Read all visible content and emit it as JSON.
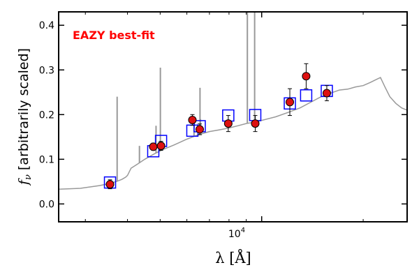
{
  "chart_data": {
    "type": "scatter",
    "title": "",
    "xlabel": "λ [Å]",
    "ylabel": "f",
    "ylabel_sub": "ν",
    "ylabel_rest": " [arbitrarily scaled]",
    "xscale": "log",
    "xlim": [
      2500,
      27000
    ],
    "ylim": [
      -0.04,
      0.43
    ],
    "yticks": [
      0.0,
      0.1,
      0.2,
      0.3,
      0.4
    ],
    "ytick_labels": [
      "0.0",
      "0.1",
      "0.2",
      "0.3",
      "0.4"
    ],
    "xtick_label": {
      "base": "10",
      "exp": "4",
      "value": 10000
    },
    "grid": false,
    "annotation": {
      "text": "EAZY best-fit",
      "color": "#ff0000",
      "position": "top-left"
    },
    "series": [
      {
        "role": "template",
        "color": "#999999",
        "points": [
          [
            2500,
            0.033
          ],
          [
            2700,
            0.034
          ],
          [
            2900,
            0.035
          ],
          [
            3100,
            0.038
          ],
          [
            3300,
            0.041
          ],
          [
            3500,
            0.045
          ],
          [
            3700,
            0.05
          ],
          [
            3850,
            0.055
          ],
          [
            3950,
            0.06
          ],
          [
            4000,
            0.064
          ],
          [
            4100,
            0.08
          ],
          [
            4300,
            0.09
          ],
          [
            4500,
            0.1
          ],
          [
            4800,
            0.112
          ],
          [
            5100,
            0.122
          ],
          [
            5500,
            0.132
          ],
          [
            6000,
            0.145
          ],
          [
            6500,
            0.155
          ],
          [
            7000,
            0.162
          ],
          [
            7500,
            0.166
          ],
          [
            8000,
            0.17
          ],
          [
            8500,
            0.175
          ],
          [
            9000,
            0.18
          ],
          [
            9500,
            0.183
          ],
          [
            10000,
            0.187
          ],
          [
            11000,
            0.195
          ],
          [
            12000,
            0.205
          ],
          [
            13000,
            0.215
          ],
          [
            14000,
            0.228
          ],
          [
            15000,
            0.24
          ],
          [
            16000,
            0.248
          ],
          [
            17000,
            0.255
          ],
          [
            18000,
            0.257
          ],
          [
            19000,
            0.262
          ],
          [
            20000,
            0.265
          ],
          [
            21000,
            0.272
          ],
          [
            21800,
            0.278
          ],
          [
            22500,
            0.283
          ],
          [
            23200,
            0.262
          ],
          [
            24000,
            0.24
          ],
          [
            25000,
            0.225
          ],
          [
            26000,
            0.215
          ],
          [
            27000,
            0.21
          ]
        ],
        "emission_lines": [
          {
            "x": 3727,
            "peak": 0.24
          },
          {
            "x": 4340,
            "peak": 0.13
          },
          {
            "x": 4861,
            "peak": 0.175
          },
          {
            "x": 4959,
            "peak": 0.14
          },
          {
            "x": 5007,
            "peak": 0.305
          },
          {
            "x": 6300,
            "peak": 0.18
          },
          {
            "x": 6563,
            "peak": 0.26
          },
          {
            "x": 6583,
            "peak": 0.19
          },
          {
            "x": 9069,
            "peak": 0.43
          },
          {
            "x": 9531,
            "peak": 0.43
          }
        ]
      },
      {
        "role": "model_photometry",
        "color": "#0000ff",
        "marker": "square",
        "points": [
          [
            3550,
            0.048
          ],
          [
            4770,
            0.118
          ],
          [
            5030,
            0.141
          ],
          [
            6230,
            0.164
          ],
          [
            6550,
            0.174
          ],
          [
            7960,
            0.198
          ],
          [
            9570,
            0.199
          ],
          [
            12120,
            0.225
          ],
          [
            13550,
            0.243
          ],
          [
            15600,
            0.253
          ]
        ]
      },
      {
        "role": "observed_photometry",
        "color": "#dd1111",
        "marker": "circle",
        "points": [
          {
            "x": 3550,
            "y": 0.044,
            "err": 0.01
          },
          {
            "x": 4770,
            "y": 0.128,
            "err": 0.008
          },
          {
            "x": 5030,
            "y": 0.13,
            "err": 0.01
          },
          {
            "x": 6230,
            "y": 0.188,
            "err": 0.012
          },
          {
            "x": 6550,
            "y": 0.167,
            "err": 0.012
          },
          {
            "x": 7960,
            "y": 0.18,
            "err": 0.018
          },
          {
            "x": 9570,
            "y": 0.18,
            "err": 0.018
          },
          {
            "x": 12120,
            "y": 0.228,
            "err": 0.03
          },
          {
            "x": 13550,
            "y": 0.286,
            "err": 0.028
          },
          {
            "x": 15600,
            "y": 0.248,
            "err": 0.017
          }
        ]
      }
    ]
  }
}
